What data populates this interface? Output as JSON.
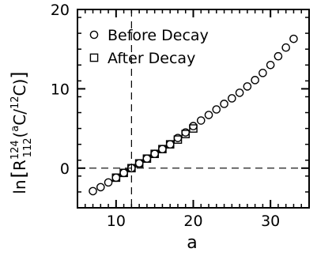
{
  "chart_data": {
    "type": "scatter",
    "title": "",
    "xlabel": "a",
    "ylabel": {
      "prefix": "ln",
      "R": "R",
      "sup": "124",
      "sub": "112",
      "open": "(",
      "a_sup": "a",
      "c1": "C/",
      "twelve_sup": "12",
      "c2": "C)"
    },
    "xlim": [
      5,
      35
    ],
    "ylim": [
      -5,
      20
    ],
    "x_ticks": [
      10,
      20,
      30
    ],
    "y_ticks": [
      0,
      10,
      20
    ],
    "x_minor_step": 1,
    "y_minor_step": 2,
    "grid": false,
    "legend_position": "top-left",
    "reference_lines": [
      {
        "type": "vertical",
        "x": 12,
        "style": "dashed"
      },
      {
        "type": "horizontal",
        "y": 0,
        "style": "dashed"
      }
    ],
    "series": [
      {
        "name": "Before Decay",
        "marker": "circle",
        "color": "#000000",
        "points": [
          [
            7,
            -2.9
          ],
          [
            8,
            -2.4
          ],
          [
            9,
            -1.8
          ],
          [
            10,
            -1.2
          ],
          [
            11,
            -0.6
          ],
          [
            12,
            0.0
          ],
          [
            13,
            0.6
          ],
          [
            14,
            1.2
          ],
          [
            15,
            1.8
          ],
          [
            16,
            2.4
          ],
          [
            17,
            3.0
          ],
          [
            18,
            3.8
          ],
          [
            19,
            4.5
          ],
          [
            20,
            5.3
          ],
          [
            21,
            6.0
          ],
          [
            22,
            6.7
          ],
          [
            23,
            7.4
          ],
          [
            24,
            8.1
          ],
          [
            25,
            8.8
          ],
          [
            26,
            9.5
          ],
          [
            27,
            10.3
          ],
          [
            28,
            11.1
          ],
          [
            29,
            12.0
          ],
          [
            30,
            13.0
          ],
          [
            31,
            14.1
          ],
          [
            32,
            15.2
          ],
          [
            33,
            16.3
          ]
        ]
      },
      {
        "name": "After Decay",
        "marker": "square",
        "color": "#000000",
        "points": [
          [
            10,
            -1.2
          ],
          [
            11,
            -0.6
          ],
          [
            12,
            0.0
          ],
          [
            13,
            0.6
          ],
          [
            14,
            1.2
          ],
          [
            15,
            1.8
          ],
          [
            16,
            2.4
          ],
          [
            17,
            3.0
          ],
          [
            18,
            3.6
          ],
          [
            19,
            4.3
          ],
          [
            20,
            5.0
          ]
        ]
      }
    ]
  }
}
